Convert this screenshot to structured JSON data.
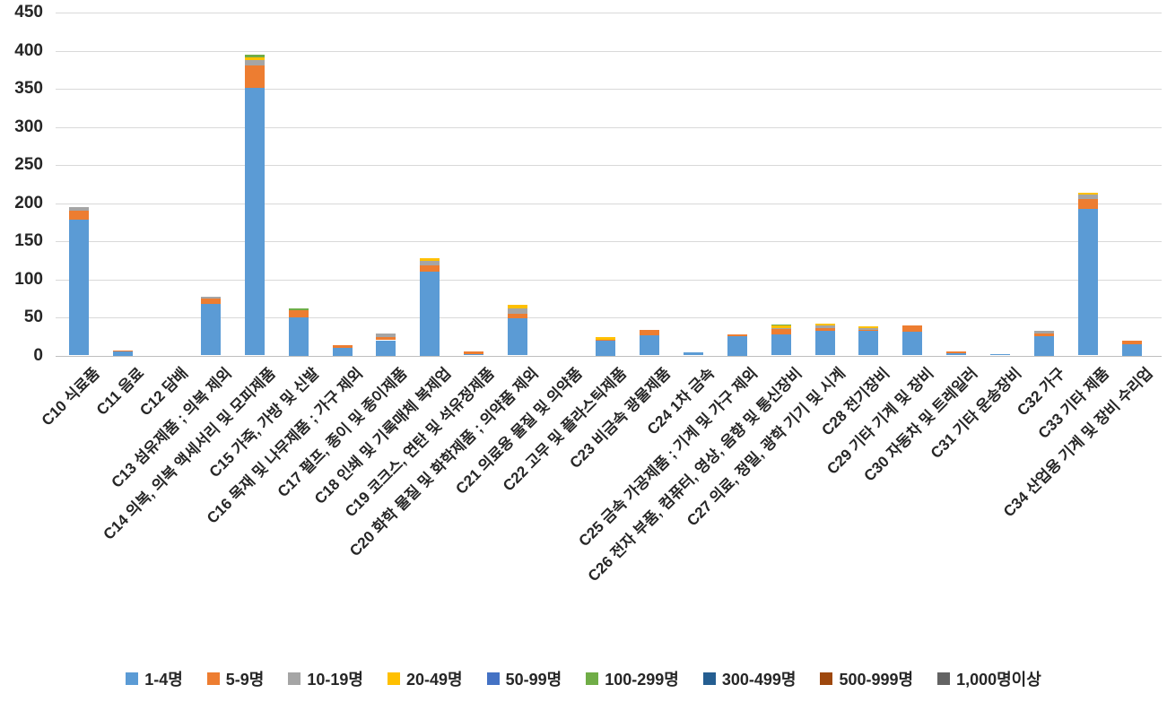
{
  "chart_data": {
    "type": "bar",
    "stacked": true,
    "title": "",
    "xlabel": "",
    "ylabel": "",
    "ylim": [
      0,
      450
    ],
    "ytick_step": 50,
    "grid": true,
    "legend_position": "bottom",
    "categories": [
      "C10 식료품",
      "C11 음료",
      "C12 담배",
      "C13 섬유제품 ; 의복 제외",
      "C14 의복, 의복 액세서리 및 모피제품",
      "C15 가죽, 가방 및 신발",
      "C16 목재 및 나무제품 ; 가구 제외",
      "C17 펄프, 종이 및 종이제품",
      "C18 인쇄 및 기록매체 복제업",
      "C19 코크스, 연탄 및 석유정제품",
      "C20 화학 물질 및 화학제품 ; 의약품 제외",
      "C21 의료용 물질 및 의약품",
      "C22 고무 및 플라스틱제품",
      "C23 비금속 광물제품",
      "C24 1차 금속",
      "C25 금속 가공제품 ; 기계 및 가구 제외",
      "C26 전자 부품, 컴퓨터, 영상, 음향 및 통신장비",
      "C27 의료, 정밀, 광학 기기 및 시계",
      "C28 전기장비",
      "C29 기타 기계 및 장비",
      "C30 자동차 및 트레일러",
      "C31 기타 운송장비",
      "C32 가구",
      "C33 기타 제품",
      "C34 산업용 기계 및 장비 수리업"
    ],
    "series": [
      {
        "name": "1-4명",
        "color": "#5B9BD5",
        "values": [
          178,
          5,
          0,
          68,
          351,
          50,
          10,
          20,
          110,
          2,
          49,
          0,
          20,
          27,
          4,
          25,
          28,
          32,
          32,
          31,
          3,
          2,
          25,
          192,
          15
        ]
      },
      {
        "name": "5-9명",
        "color": "#ED7D31",
        "values": [
          12,
          2,
          0,
          7,
          30,
          9,
          4,
          4,
          8,
          3,
          6,
          0,
          1,
          7,
          0,
          3,
          7,
          4,
          2,
          9,
          2,
          0,
          4,
          13,
          5
        ]
      },
      {
        "name": "10-19명",
        "color": "#A5A5A5",
        "values": [
          5,
          0,
          0,
          2,
          7,
          0,
          0,
          5,
          6,
          0,
          7,
          0,
          0,
          0,
          0,
          0,
          1,
          3,
          2,
          0,
          0,
          0,
          3,
          6,
          0
        ]
      },
      {
        "name": "20-49명",
        "color": "#FFC000",
        "values": [
          0,
          0,
          0,
          0,
          3,
          0,
          0,
          0,
          4,
          0,
          4,
          0,
          3,
          0,
          0,
          0,
          4,
          3,
          2,
          0,
          0,
          0,
          0,
          3,
          0
        ]
      },
      {
        "name": "50-99명",
        "color": "#4472C4",
        "values": [
          0,
          0,
          0,
          0,
          0,
          0,
          0,
          0,
          0,
          0,
          0,
          0,
          0,
          0,
          0,
          0,
          0,
          0,
          0,
          0,
          0,
          0,
          0,
          0,
          0
        ]
      },
      {
        "name": "100-299명",
        "color": "#70AD47",
        "values": [
          0,
          0,
          0,
          0,
          4,
          3,
          0,
          0,
          0,
          0,
          0,
          0,
          0,
          0,
          0,
          0,
          1,
          0,
          0,
          0,
          0,
          0,
          0,
          0,
          0
        ]
      },
      {
        "name": "300-499명",
        "color": "#255E91",
        "values": [
          0,
          0,
          0,
          0,
          0,
          0,
          0,
          0,
          0,
          0,
          0,
          0,
          0,
          0,
          0,
          0,
          0,
          0,
          0,
          0,
          0,
          0,
          0,
          0,
          0
        ]
      },
      {
        "name": "500-999명",
        "color": "#9E480E",
        "values": [
          0,
          0,
          0,
          0,
          0,
          0,
          0,
          0,
          0,
          0,
          0,
          0,
          0,
          0,
          0,
          0,
          0,
          0,
          0,
          0,
          0,
          0,
          0,
          0,
          0
        ]
      },
      {
        "name": "1,000명이상",
        "color": "#636363",
        "values": [
          0,
          0,
          0,
          0,
          0,
          0,
          0,
          0,
          0,
          0,
          0,
          0,
          0,
          0,
          0,
          0,
          0,
          0,
          0,
          0,
          0,
          0,
          0,
          0,
          0
        ]
      }
    ]
  }
}
